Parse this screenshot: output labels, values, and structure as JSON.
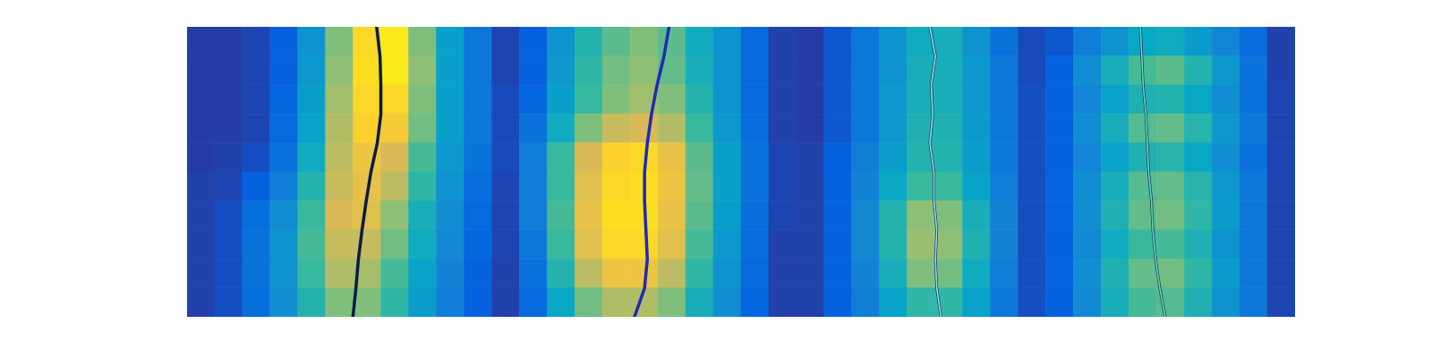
{
  "chart_data": {
    "type": "heatmap",
    "tick_labels": false,
    "xlim": [
      0,
      40
    ],
    "ylim": [
      0,
      10
    ],
    "zlim": [
      0,
      1
    ],
    "x_edges": [
      0,
      1,
      2,
      3,
      4,
      5,
      6,
      7,
      8,
      9,
      10,
      11,
      12,
      13,
      14,
      15,
      16,
      17,
      18,
      19,
      20,
      21,
      22,
      23,
      24,
      25,
      26,
      27,
      28,
      29,
      30,
      31,
      32,
      33,
      34,
      35,
      36,
      37,
      38,
      39,
      40
    ],
    "y_edges": [
      10,
      9,
      8,
      7,
      6,
      5,
      4,
      3,
      2,
      1,
      0
    ],
    "z": [
      [
        0.04,
        0.04,
        0.06,
        0.12,
        0.3,
        0.6,
        0.9,
        0.95,
        0.6,
        0.35,
        0.2,
        0.06,
        0.12,
        0.3,
        0.45,
        0.55,
        0.6,
        0.55,
        0.4,
        0.3,
        0.15,
        0.05,
        0.04,
        0.1,
        0.2,
        0.3,
        0.4,
        0.42,
        0.3,
        0.18,
        0.07,
        0.1,
        0.22,
        0.3,
        0.38,
        0.4,
        0.33,
        0.25,
        0.16,
        0.05
      ],
      [
        0.04,
        0.04,
        0.06,
        0.12,
        0.32,
        0.62,
        0.92,
        0.95,
        0.62,
        0.35,
        0.2,
        0.06,
        0.12,
        0.32,
        0.48,
        0.58,
        0.62,
        0.56,
        0.42,
        0.3,
        0.15,
        0.05,
        0.04,
        0.1,
        0.2,
        0.3,
        0.42,
        0.42,
        0.32,
        0.2,
        0.07,
        0.12,
        0.28,
        0.42,
        0.52,
        0.55,
        0.45,
        0.32,
        0.18,
        0.05
      ],
      [
        0.04,
        0.04,
        0.06,
        0.14,
        0.34,
        0.65,
        0.9,
        0.9,
        0.6,
        0.35,
        0.2,
        0.07,
        0.14,
        0.35,
        0.5,
        0.6,
        0.65,
        0.6,
        0.45,
        0.3,
        0.15,
        0.05,
        0.04,
        0.1,
        0.2,
        0.32,
        0.42,
        0.42,
        0.32,
        0.2,
        0.08,
        0.12,
        0.25,
        0.36,
        0.44,
        0.45,
        0.38,
        0.28,
        0.18,
        0.06
      ],
      [
        0.04,
        0.04,
        0.06,
        0.15,
        0.36,
        0.68,
        0.88,
        0.85,
        0.58,
        0.35,
        0.2,
        0.07,
        0.18,
        0.4,
        0.6,
        0.72,
        0.75,
        0.68,
        0.5,
        0.32,
        0.16,
        0.05,
        0.04,
        0.1,
        0.2,
        0.32,
        0.44,
        0.44,
        0.33,
        0.2,
        0.08,
        0.12,
        0.28,
        0.42,
        0.54,
        0.56,
        0.46,
        0.32,
        0.2,
        0.06
      ],
      [
        0.04,
        0.05,
        0.08,
        0.18,
        0.4,
        0.7,
        0.82,
        0.75,
        0.52,
        0.32,
        0.18,
        0.07,
        0.22,
        0.5,
        0.75,
        0.88,
        0.9,
        0.8,
        0.55,
        0.35,
        0.18,
        0.06,
        0.05,
        0.12,
        0.22,
        0.34,
        0.45,
        0.45,
        0.34,
        0.2,
        0.08,
        0.12,
        0.25,
        0.36,
        0.44,
        0.46,
        0.38,
        0.28,
        0.18,
        0.06
      ],
      [
        0.05,
        0.06,
        0.12,
        0.22,
        0.45,
        0.72,
        0.8,
        0.7,
        0.48,
        0.3,
        0.16,
        0.06,
        0.22,
        0.5,
        0.78,
        0.9,
        0.92,
        0.82,
        0.56,
        0.35,
        0.18,
        0.06,
        0.05,
        0.12,
        0.24,
        0.38,
        0.5,
        0.5,
        0.36,
        0.22,
        0.08,
        0.13,
        0.28,
        0.42,
        0.54,
        0.56,
        0.46,
        0.32,
        0.2,
        0.06
      ],
      [
        0.05,
        0.08,
        0.16,
        0.28,
        0.5,
        0.75,
        0.78,
        0.62,
        0.42,
        0.28,
        0.15,
        0.06,
        0.22,
        0.52,
        0.8,
        0.92,
        0.92,
        0.8,
        0.55,
        0.34,
        0.17,
        0.06,
        0.05,
        0.12,
        0.26,
        0.45,
        0.62,
        0.6,
        0.42,
        0.24,
        0.08,
        0.13,
        0.28,
        0.44,
        0.56,
        0.58,
        0.48,
        0.33,
        0.2,
        0.06
      ],
      [
        0.05,
        0.08,
        0.18,
        0.3,
        0.52,
        0.72,
        0.72,
        0.58,
        0.4,
        0.26,
        0.14,
        0.06,
        0.2,
        0.5,
        0.78,
        0.9,
        0.9,
        0.78,
        0.52,
        0.32,
        0.16,
        0.05,
        0.05,
        0.12,
        0.26,
        0.45,
        0.64,
        0.62,
        0.44,
        0.24,
        0.08,
        0.12,
        0.26,
        0.4,
        0.5,
        0.52,
        0.44,
        0.3,
        0.2,
        0.06
      ],
      [
        0.05,
        0.08,
        0.18,
        0.3,
        0.5,
        0.68,
        0.66,
        0.52,
        0.36,
        0.24,
        0.12,
        0.05,
        0.18,
        0.45,
        0.7,
        0.82,
        0.82,
        0.7,
        0.48,
        0.3,
        0.15,
        0.05,
        0.05,
        0.12,
        0.24,
        0.42,
        0.6,
        0.58,
        0.4,
        0.22,
        0.08,
        0.13,
        0.28,
        0.44,
        0.56,
        0.58,
        0.48,
        0.33,
        0.2,
        0.06
      ],
      [
        0.05,
        0.08,
        0.16,
        0.28,
        0.45,
        0.6,
        0.6,
        0.48,
        0.34,
        0.22,
        0.12,
        0.05,
        0.15,
        0.38,
        0.58,
        0.68,
        0.68,
        0.6,
        0.42,
        0.28,
        0.14,
        0.05,
        0.05,
        0.12,
        0.22,
        0.36,
        0.48,
        0.48,
        0.36,
        0.2,
        0.08,
        0.12,
        0.26,
        0.42,
        0.52,
        0.54,
        0.44,
        0.3,
        0.2,
        0.06
      ]
    ],
    "lines": {
      "y": [
        10,
        9,
        8,
        7,
        6,
        5,
        4,
        3,
        2,
        1,
        0
      ],
      "series": [
        {
          "color": "#0b1a48",
          "values": [
            6.83,
            6.95,
            6.98,
            6.98,
            6.85,
            6.62,
            6.45,
            6.3,
            6.17,
            6.08,
            5.97
          ]
        },
        {
          "color": "#1c2bb5",
          "values": [
            17.38,
            17.2,
            16.95,
            16.75,
            16.6,
            16.5,
            16.5,
            16.55,
            16.6,
            16.5,
            16.13
          ]
        },
        {
          "color": "#8ce6ec",
          "values": [
            26.8,
            27.0,
            26.85,
            26.9,
            26.8,
            26.95,
            26.95,
            27.05,
            27.0,
            27.05,
            27.2
          ]
        },
        {
          "color": "#5ee0c0",
          "values": [
            34.4,
            34.45,
            34.5,
            34.6,
            34.65,
            34.7,
            34.8,
            34.85,
            34.95,
            35.1,
            35.3
          ]
        }
      ]
    }
  }
}
